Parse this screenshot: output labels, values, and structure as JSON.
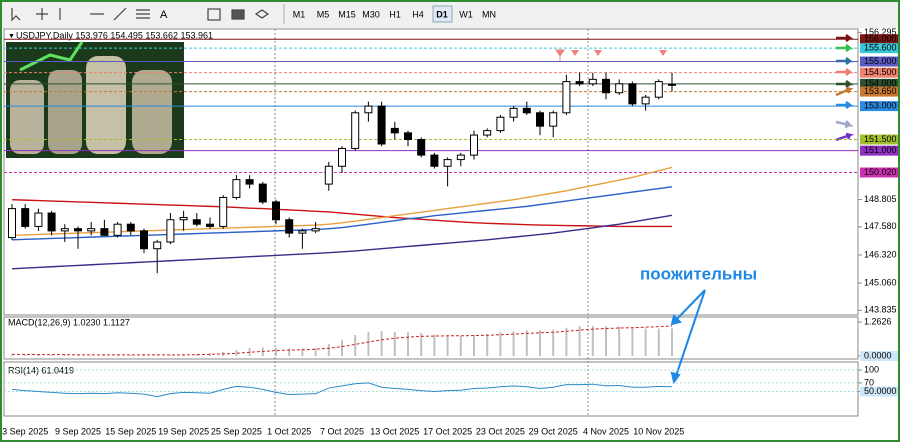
{
  "toolbar": {
    "timeframes": [
      "M1",
      "M5",
      "M15",
      "M30",
      "H1",
      "H4",
      "D1",
      "W1",
      "MN"
    ],
    "active": 6
  },
  "chart_data": [
    {
      "type": "candlestick",
      "title": "USDJPY,Daily 153.976 154.495 153.662 153.961",
      "categories": [
        null,
        "3 Sep 2025",
        null,
        null,
        null,
        "9 Sep 2025",
        null,
        null,
        null,
        "15 Sep 2025",
        null,
        null,
        null,
        "19 Sep 2025",
        null,
        null,
        null,
        "25 Sep 2025",
        null,
        null,
        null,
        "1 Oct 2025",
        null,
        null,
        null,
        "7 Oct 2025",
        null,
        null,
        null,
        "13 Oct 2025",
        null,
        null,
        null,
        "17 Oct 2025",
        null,
        null,
        null,
        "23 Oct 2025",
        null,
        null,
        null,
        "29 Oct 2025",
        null,
        null,
        null,
        "4 Nov 2025",
        null,
        null,
        null,
        "10 Nov 2025",
        null
      ],
      "open": [
        147.1,
        148.4,
        147.6,
        148.2,
        147.4,
        147.5,
        147.4,
        147.5,
        147.2,
        147.7,
        147.4,
        146.6,
        146.9,
        147.9,
        147.9,
        147.7,
        147.6,
        148.9,
        149.7,
        149.5,
        148.7,
        147.9,
        147.3,
        147.4,
        149.5,
        150.3,
        151.1,
        152.7,
        153.0,
        152.0,
        151.8,
        151.5,
        150.8,
        150.3,
        150.6,
        150.8,
        151.7,
        151.9,
        152.5,
        152.9,
        152.7,
        152.1,
        152.7,
        154.1,
        154.0,
        154.2,
        153.6,
        154.0,
        153.1,
        153.4,
        153.976
      ],
      "high": [
        148.6,
        148.6,
        148.4,
        148.3,
        147.7,
        147.6,
        147.8,
        147.9,
        147.8,
        147.8,
        147.5,
        147.0,
        148.2,
        148.3,
        148.2,
        148.0,
        149.0,
        149.9,
        149.9,
        149.6,
        148.8,
        148.0,
        147.5,
        147.8,
        150.5,
        151.2,
        152.8,
        153.2,
        153.2,
        152.3,
        151.9,
        151.6,
        150.9,
        150.7,
        150.9,
        151.9,
        152.0,
        152.6,
        153.0,
        153.2,
        152.8,
        152.8,
        154.4,
        154.5,
        154.5,
        154.5,
        154.2,
        154.1,
        153.5,
        154.2,
        154.495
      ],
      "low": [
        147.0,
        147.5,
        147.4,
        147.2,
        146.9,
        146.6,
        147.2,
        147.2,
        147.1,
        147.2,
        146.4,
        145.5,
        146.8,
        147.4,
        147.6,
        147.5,
        147.5,
        148.8,
        149.3,
        148.6,
        147.7,
        147.1,
        146.6,
        147.3,
        149.2,
        150.0,
        151.0,
        152.3,
        151.2,
        151.5,
        151.2,
        150.7,
        150.2,
        149.4,
        150.3,
        150.6,
        151.6,
        151.8,
        152.3,
        152.6,
        151.7,
        151.6,
        152.6,
        153.9,
        153.9,
        153.3,
        153.5,
        153.0,
        152.8,
        153.3,
        153.662
      ],
      "close": [
        148.4,
        147.6,
        148.2,
        147.4,
        147.5,
        147.4,
        147.5,
        147.2,
        147.7,
        147.4,
        146.6,
        146.9,
        147.9,
        148.0,
        147.7,
        147.6,
        148.9,
        149.7,
        149.5,
        148.7,
        147.9,
        147.3,
        147.4,
        147.5,
        150.3,
        151.1,
        152.7,
        153.0,
        151.3,
        151.8,
        151.5,
        150.8,
        150.3,
        150.6,
        150.8,
        151.7,
        151.9,
        152.5,
        152.9,
        152.7,
        152.1,
        152.7,
        154.1,
        154.0,
        154.2,
        153.6,
        154.0,
        153.1,
        153.4,
        154.1,
        153.961
      ],
      "lines": [
        {
          "color": "#cc1111",
          "values": [
            148.8,
            148.78,
            148.76,
            148.74,
            148.72,
            148.7,
            148.68,
            148.66,
            148.64,
            148.62,
            148.6,
            148.58,
            148.56,
            148.54,
            148.52,
            148.5,
            148.48,
            148.45,
            148.42,
            148.4,
            148.37,
            148.34,
            148.31,
            148.28,
            148.25,
            148.2,
            148.15,
            148.1,
            148.05,
            148.0,
            147.96,
            147.92,
            147.88,
            147.84,
            147.8,
            147.77,
            147.74,
            147.72,
            147.7,
            147.68,
            147.66,
            147.65,
            147.64,
            147.63,
            147.62,
            147.61,
            147.6,
            147.6,
            147.6,
            147.6,
            147.6
          ]
        },
        {
          "color": "#e8a040",
          "values": [
            147.2,
            147.22,
            147.24,
            147.26,
            147.28,
            147.3,
            147.32,
            147.34,
            147.36,
            147.38,
            147.4,
            147.42,
            147.44,
            147.46,
            147.48,
            147.5,
            147.52,
            147.54,
            147.56,
            147.58,
            147.6,
            147.62,
            147.64,
            147.66,
            147.7,
            147.76,
            147.84,
            147.92,
            148.0,
            148.08,
            148.16,
            148.24,
            148.32,
            148.4,
            148.48,
            148.56,
            148.64,
            148.72,
            148.8,
            148.9,
            149.0,
            149.1,
            149.2,
            149.32,
            149.44,
            149.56,
            149.68,
            149.8,
            149.95,
            150.1,
            150.25
          ]
        },
        {
          "color": "#2a5fc8",
          "values": [
            147.0,
            147.02,
            147.04,
            147.06,
            147.08,
            147.1,
            147.12,
            147.14,
            147.16,
            147.18,
            147.2,
            147.22,
            147.24,
            147.26,
            147.28,
            147.3,
            147.32,
            147.34,
            147.36,
            147.38,
            147.4,
            147.42,
            147.44,
            147.46,
            147.5,
            147.55,
            147.62,
            147.7,
            147.78,
            147.86,
            147.94,
            148.0,
            148.08,
            148.14,
            148.2,
            148.26,
            148.32,
            148.38,
            148.44,
            148.5,
            148.58,
            148.66,
            148.74,
            148.82,
            148.9,
            148.98,
            149.06,
            149.14,
            149.22,
            149.3,
            149.38
          ]
        },
        {
          "color": "#3a2a8a",
          "values": [
            145.7,
            145.73,
            145.76,
            145.79,
            145.82,
            145.85,
            145.88,
            145.91,
            145.94,
            145.97,
            146.0,
            146.03,
            146.06,
            146.09,
            146.12,
            146.15,
            146.18,
            146.21,
            146.24,
            146.27,
            146.3,
            146.33,
            146.36,
            146.39,
            146.42,
            146.46,
            146.5,
            146.55,
            146.6,
            146.65,
            146.7,
            146.75,
            146.8,
            146.85,
            146.9,
            146.95,
            147.0,
            147.06,
            147.12,
            147.18,
            147.24,
            147.3,
            147.38,
            147.46,
            147.54,
            147.62,
            147.7,
            147.8,
            147.9,
            148.0,
            148.1
          ]
        }
      ],
      "levels": [
        {
          "value": 156.0,
          "label": "156.000",
          "color": "#7a1515"
        },
        {
          "value": 155.6,
          "label": "155.600",
          "color": "#38c8d8"
        },
        {
          "value": 155.0,
          "label": "155.000",
          "color": "#5a5ac0"
        },
        {
          "value": 154.5,
          "label": "154.500",
          "color": "#f08070"
        },
        {
          "value": 154.0,
          "label": "154.000",
          "color": "#2f5030"
        },
        {
          "value": 153.65,
          "label": "153.650",
          "color": "#c87830"
        },
        {
          "value": 153.0,
          "label": "153.000",
          "color": "#2a8ae0"
        },
        {
          "value": 151.5,
          "label": "151.500",
          "color": "#a0c030"
        },
        {
          "value": 151.0,
          "label": "151.000",
          "color": "#9030c0"
        },
        {
          "value": 150.02,
          "label": "150.020",
          "color": "#cc30b0"
        }
      ],
      "ylim": [
        143.625,
        156.46
      ],
      "yticks": [
        156.295,
        148.805,
        {
          "value": 147.58,
          "label": "147.580"
        },
        {
          "value": 146.32,
          "label": "146.320"
        },
        {
          "value": 145.06,
          "label": "145.060"
        },
        143.835
      ],
      "annotation": "поожительны"
    },
    {
      "type": "macd",
      "title": "MACD(12,26,9) 1.0230 1.1127",
      "values": [
        0.05,
        0.04,
        0.04,
        0.03,
        0.03,
        0.03,
        0.02,
        0.02,
        0.03,
        0.03,
        0.03,
        0.02,
        0.03,
        0.05,
        0.07,
        0.1,
        0.15,
        0.22,
        0.3,
        0.32,
        0.3,
        0.28,
        0.28,
        0.3,
        0.45,
        0.6,
        0.78,
        0.9,
        0.92,
        0.9,
        0.88,
        0.85,
        0.8,
        0.75,
        0.75,
        0.78,
        0.82,
        0.88,
        0.92,
        0.95,
        0.95,
        0.98,
        1.05,
        1.1,
        1.12,
        1.1,
        1.1,
        1.05,
        1.02,
        1.02,
        1.023
      ],
      "signal": [
        0.06,
        0.06,
        0.05,
        0.05,
        0.05,
        0.04,
        0.04,
        0.04,
        0.04,
        0.04,
        0.04,
        0.04,
        0.04,
        0.04,
        0.05,
        0.06,
        0.08,
        0.1,
        0.14,
        0.17,
        0.2,
        0.22,
        0.23,
        0.25,
        0.29,
        0.35,
        0.43,
        0.52,
        0.6,
        0.66,
        0.7,
        0.73,
        0.74,
        0.75,
        0.75,
        0.76,
        0.77,
        0.79,
        0.81,
        0.84,
        0.86,
        0.88,
        0.92,
        0.96,
        1.0,
        1.02,
        1.04,
        1.05,
        1.07,
        1.09,
        1.1127
      ],
      "color": "#c0c0c0",
      "signal_color": "#cc2222",
      "ylim": [
        0,
        1.2626
      ],
      "yticks": [
        1.2626,
        {
          "value": 0,
          "label": "0.0000"
        }
      ]
    },
    {
      "type": "line",
      "title": "RSI(14) 61.0419",
      "values": [
        55,
        52,
        50,
        48,
        46,
        45,
        46,
        45,
        47,
        46,
        44,
        38,
        45,
        48,
        47,
        46,
        55,
        62,
        60,
        55,
        48,
        43,
        44,
        45,
        58,
        63,
        68,
        70,
        60,
        57,
        55,
        52,
        50,
        52,
        53,
        57,
        58,
        61,
        63,
        61,
        57,
        60,
        66,
        66,
        67,
        63,
        64,
        60,
        60,
        62,
        61.0419
      ],
      "color": "#2a8ac8",
      "ylim": [
        0,
        100
      ],
      "yticks": [
        100,
        70,
        {
          "value": 50,
          "label": "50.0000"
        }
      ]
    }
  ]
}
